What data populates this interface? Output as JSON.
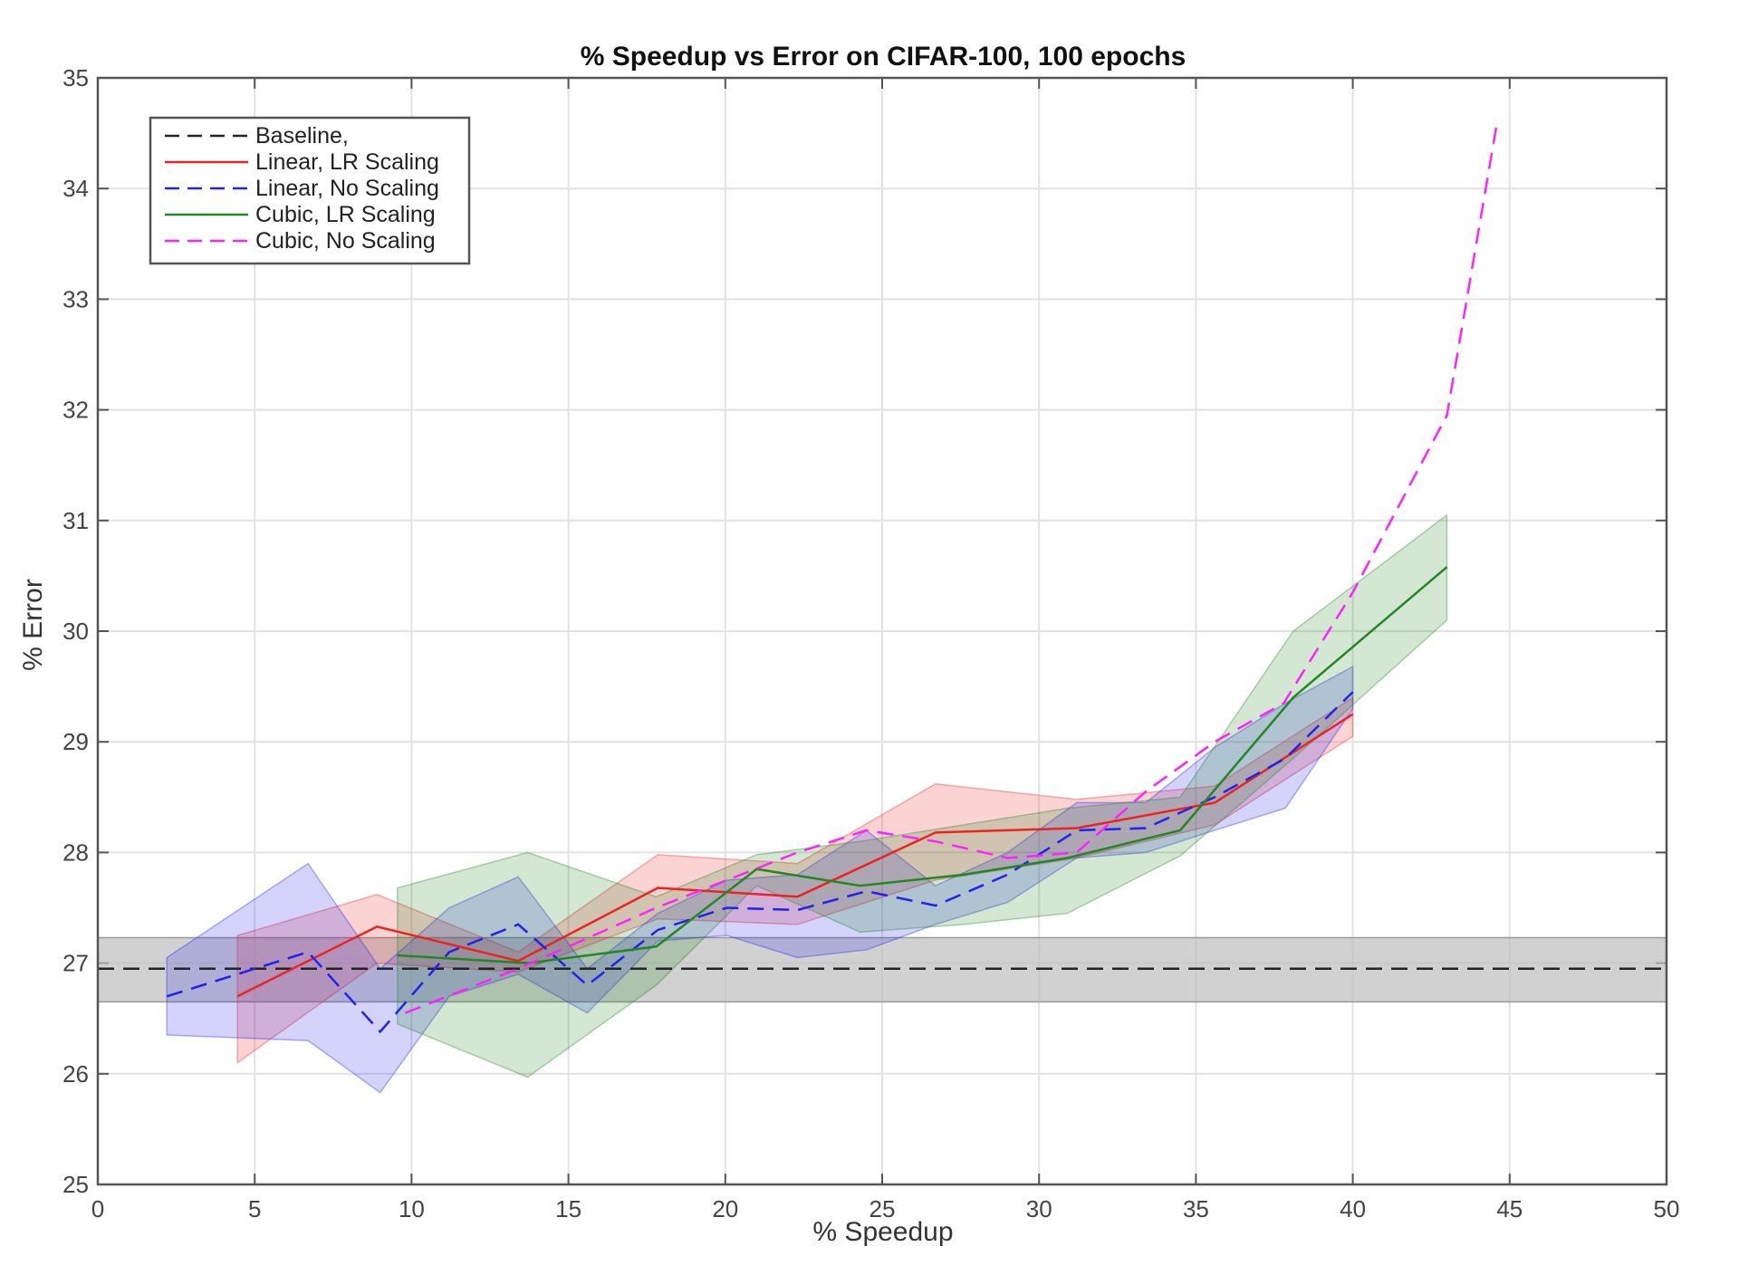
{
  "chart_data": {
    "type": "line",
    "title": "% Speedup vs Error on CIFAR-100, 100 epochs",
    "xlabel": "% Speedup",
    "ylabel": "% Error",
    "xlim": [
      0,
      50
    ],
    "ylim": [
      25,
      35
    ],
    "xticks": [
      0,
      5,
      10,
      15,
      20,
      25,
      30,
      35,
      40,
      45,
      50
    ],
    "yticks": [
      25,
      26,
      27,
      28,
      29,
      30,
      31,
      32,
      33,
      34,
      35
    ],
    "grid": true,
    "legend_position": "top-left",
    "baseline": {
      "name": "Baseline,",
      "value": 26.95,
      "band": [
        26.65,
        27.23
      ],
      "color": "#222222",
      "band_color": "#bdbdbd",
      "style": "dashed"
    },
    "series": [
      {
        "name": "Linear, LR Scaling",
        "color": "#ee2222",
        "style": "solid",
        "x": [
          4.45,
          8.9,
          13.4,
          17.85,
          22.3,
          26.7,
          31.2,
          35.6,
          40.0
        ],
        "y": [
          26.7,
          27.33,
          27.02,
          27.68,
          27.6,
          28.18,
          28.22,
          28.45,
          29.25
        ],
        "upper": [
          27.25,
          27.62,
          27.1,
          27.98,
          27.9,
          28.62,
          28.48,
          28.6,
          29.4
        ],
        "lower": [
          26.1,
          27.0,
          26.92,
          27.4,
          27.35,
          27.75,
          27.95,
          28.25,
          29.05
        ]
      },
      {
        "name": "Linear, No Scaling",
        "color": "#2222ee",
        "style": "dashed",
        "x": [
          2.2,
          6.7,
          9.0,
          11.2,
          13.4,
          15.6,
          17.85,
          20.05,
          22.3,
          24.5,
          26.7,
          29.0,
          31.2,
          33.4,
          35.6,
          37.85,
          40.0
        ],
        "y": [
          26.7,
          27.1,
          26.38,
          27.1,
          27.35,
          26.8,
          27.3,
          27.5,
          27.48,
          27.65,
          27.52,
          27.8,
          28.2,
          28.22,
          28.5,
          28.85,
          29.45
        ],
        "upper": [
          27.05,
          27.9,
          26.95,
          27.5,
          27.78,
          26.95,
          27.45,
          27.75,
          27.8,
          28.2,
          27.7,
          28.0,
          28.45,
          28.45,
          28.95,
          29.35,
          29.68
        ],
        "lower": [
          26.35,
          26.3,
          25.83,
          26.7,
          26.9,
          26.55,
          27.2,
          27.25,
          27.05,
          27.12,
          27.35,
          27.55,
          27.95,
          28.0,
          28.2,
          28.4,
          29.3
        ]
      },
      {
        "name": "Cubic, LR Scaling",
        "color": "#228822",
        "style": "solid",
        "x": [
          9.55,
          13.7,
          17.8,
          21.0,
          24.3,
          27.6,
          30.9,
          34.5,
          38.1,
          43.0
        ],
        "y": [
          27.07,
          27.0,
          27.15,
          27.85,
          27.7,
          27.8,
          27.95,
          28.2,
          29.4,
          30.58
        ],
        "upper": [
          27.68,
          28.0,
          27.6,
          27.98,
          28.1,
          28.25,
          28.4,
          28.5,
          30.0,
          31.05
        ],
        "lower": [
          26.45,
          25.97,
          26.8,
          27.7,
          27.28,
          27.35,
          27.45,
          27.97,
          28.85,
          30.1
        ]
      },
      {
        "name": "Cubic, No Scaling",
        "color": "#ff22ff",
        "style": "dashed",
        "x": [
          9.8,
          13.4,
          17.8,
          22.3,
          24.5,
          26.7,
          29.0,
          31.2,
          33.4,
          35.6,
          37.8,
          40.0,
          43.0,
          44.6
        ],
        "y": [
          26.55,
          26.95,
          27.5,
          28.0,
          28.2,
          28.1,
          27.95,
          28.0,
          28.55,
          29.0,
          29.35,
          30.35,
          31.95,
          34.6
        ]
      }
    ]
  }
}
